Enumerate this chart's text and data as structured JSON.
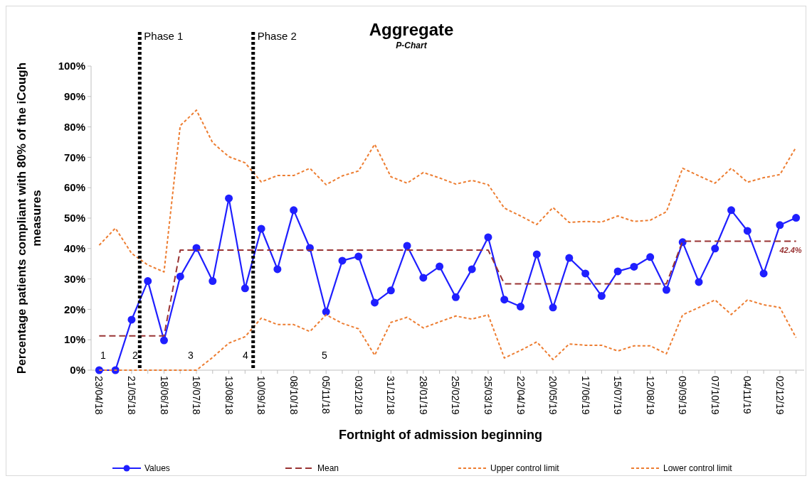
{
  "chart_data": {
    "type": "line",
    "title": "Aggregate",
    "subtitle": "P-Chart",
    "xlabel": "Fortnight of admission beginning",
    "ylabel": "Percentage patients compliant with 80% of the iCough measures",
    "x": [
      "2018-04-23",
      "2018-05-07",
      "2018-05-21",
      "2018-06-04",
      "2018-06-18",
      "2018-07-02",
      "2018-07-16",
      "2018-07-30",
      "2018-08-13",
      "2018-08-27",
      "2018-09-10",
      "2018-09-24",
      "2018-10-08",
      "2018-10-22",
      "2018-11-05",
      "2018-11-19",
      "2018-12-03",
      "2018-12-17",
      "2018-12-31",
      "2019-01-14",
      "2019-01-28",
      "2019-02-11",
      "2019-02-25",
      "2019-03-11",
      "2019-03-25",
      "2019-04-08",
      "2019-04-22",
      "2019-05-06",
      "2019-05-20",
      "2019-06-03",
      "2019-06-17",
      "2019-07-01",
      "2019-07-15",
      "2019-07-29",
      "2019-08-12",
      "2019-08-26",
      "2019-09-09",
      "2019-09-23",
      "2019-10-07",
      "2019-10-21",
      "2019-11-04",
      "2019-11-18",
      "2019-12-02",
      "2019-12-16"
    ],
    "series": [
      {
        "name": "Values",
        "color": "#1f1fff",
        "marker": "circle",
        "line_style": "solid",
        "values": [
          0,
          0,
          16.6,
          29.3,
          9.8,
          30.8,
          40.2,
          29.3,
          56.5,
          26.9,
          46.5,
          33.2,
          52.6,
          40.2,
          19.2,
          36.0,
          37.4,
          22.2,
          26.2,
          40.9,
          30.4,
          34.1,
          24.0,
          33.2,
          43.7,
          23.2,
          20.9,
          38.1,
          20.6,
          36.9,
          31.8,
          24.4,
          32.5,
          34.0,
          37.2,
          26.4,
          42.1,
          29.0,
          40.0,
          52.6,
          45.8,
          31.8,
          47.7,
          50.1
        ]
      },
      {
        "name": "Mean",
        "color": "#993333",
        "marker": "none",
        "line_style": "dashed",
        "values": [
          11.3,
          11.3,
          11.3,
          11.3,
          11.3,
          39.5,
          39.5,
          39.5,
          39.5,
          39.5,
          39.5,
          39.5,
          39.5,
          39.5,
          39.5,
          39.5,
          39.5,
          39.5,
          39.5,
          39.5,
          39.5,
          39.5,
          39.5,
          39.5,
          39.5,
          28.4,
          28.4,
          28.4,
          28.4,
          28.4,
          28.4,
          28.4,
          28.4,
          28.4,
          28.4,
          28.4,
          42.4,
          42.4,
          42.4,
          42.4,
          42.4,
          42.4,
          42.4,
          42.4
        ],
        "value_labels": [
          null,
          null,
          null,
          null,
          null,
          null,
          null,
          null,
          null,
          null,
          null,
          null,
          null,
          null,
          null,
          null,
          null,
          null,
          null,
          null,
          null,
          null,
          null,
          null,
          null,
          null,
          null,
          null,
          null,
          null,
          null,
          null,
          null,
          null,
          null,
          null,
          null,
          null,
          null,
          null,
          null,
          null,
          null,
          "42.4%"
        ]
      },
      {
        "name": "Upper control limit",
        "color": "#ed7d31",
        "marker": "none",
        "line_style": "dotted",
        "values": [
          41.1,
          46.7,
          38.4,
          34.6,
          32.3,
          80.4,
          85.5,
          74.8,
          70.2,
          68.2,
          61.9,
          64.0,
          64.0,
          66.4,
          61.0,
          63.9,
          65.5,
          74.3,
          63.6,
          61.5,
          65.0,
          63.2,
          61.2,
          62.4,
          61.0,
          53.3,
          50.7,
          47.9,
          53.5,
          48.6,
          48.9,
          48.7,
          50.7,
          48.9,
          49.3,
          52.1,
          66.4,
          63.9,
          61.5,
          66.4,
          61.8,
          63.3,
          64.3,
          73.3
        ]
      },
      {
        "name": "Lower control limit",
        "color": "#ed7d31",
        "marker": "none",
        "line_style": "dotted",
        "values": [
          0,
          0,
          0,
          0,
          0,
          0,
          0,
          4.2,
          8.9,
          11.0,
          17.1,
          15.0,
          15.0,
          12.7,
          18.2,
          15.4,
          13.6,
          4.9,
          15.7,
          17.4,
          13.9,
          15.9,
          17.8,
          16.8,
          18.2,
          4.0,
          6.5,
          9.3,
          3.5,
          8.6,
          8.2,
          8.2,
          6.3,
          8.0,
          8.0,
          5.4,
          18.2,
          20.6,
          23.1,
          18.3,
          23.1,
          21.5,
          20.6,
          10.7
        ]
      }
    ],
    "xlim": [
      "2018-04-16",
      "2019-12-23"
    ],
    "xticks": [
      {
        "value": "2018-04-23",
        "label": "23/04/18"
      },
      {
        "value": "2018-05-21",
        "label": "21/05/18"
      },
      {
        "value": "2018-06-18",
        "label": "18/06/18"
      },
      {
        "value": "2018-07-16",
        "label": "16/07/18"
      },
      {
        "value": "2018-08-13",
        "label": "13/08/18"
      },
      {
        "value": "2018-09-10",
        "label": "10/09/18"
      },
      {
        "value": "2018-10-08",
        "label": "08/10/18"
      },
      {
        "value": "2018-11-05",
        "label": "05/11/18"
      },
      {
        "value": "2018-12-03",
        "label": "03/12/18"
      },
      {
        "value": "2018-12-31",
        "label": "31/12/18"
      },
      {
        "value": "2019-01-28",
        "label": "28/01/19"
      },
      {
        "value": "2019-02-25",
        "label": "25/02/19"
      },
      {
        "value": "2019-03-25",
        "label": "25/03/19"
      },
      {
        "value": "2019-04-22",
        "label": "22/04/19"
      },
      {
        "value": "2019-05-20",
        "label": "20/05/19"
      },
      {
        "value": "2019-06-17",
        "label": "17/06/19"
      },
      {
        "value": "2019-07-15",
        "label": "15/07/19"
      },
      {
        "value": "2019-08-12",
        "label": "12/08/19"
      },
      {
        "value": "2019-09-09",
        "label": "09/09/19"
      },
      {
        "value": "2019-10-07",
        "label": "07/10/19"
      },
      {
        "value": "2019-11-04",
        "label": "04/11/19"
      },
      {
        "value": "2019-12-02",
        "label": "02/12/19"
      }
    ],
    "ylim": [
      0,
      100
    ],
    "yticks": [
      {
        "value": 0,
        "label": "0%"
      },
      {
        "value": 10,
        "label": "10%"
      },
      {
        "value": 20,
        "label": "20%"
      },
      {
        "value": 30,
        "label": "30%"
      },
      {
        "value": 40,
        "label": "40%"
      },
      {
        "value": 50,
        "label": "50%"
      },
      {
        "value": 60,
        "label": "60%"
      },
      {
        "value": 70,
        "label": "70%"
      },
      {
        "value": 80,
        "label": "80%"
      },
      {
        "value": 90,
        "label": "90%"
      },
      {
        "value": 100,
        "label": "100%"
      }
    ],
    "ref_lines": [
      {
        "axis": "x",
        "value": "2018-05-28",
        "label": "Phase 1",
        "color": "#000000",
        "line_style": "dotted"
      },
      {
        "axis": "x",
        "value": "2018-09-03",
        "label": "Phase 2",
        "color": "#000000",
        "line_style": "dotted"
      }
    ],
    "annotations": [
      "1",
      "2",
      "3",
      "4",
      "5"
    ],
    "grid": false,
    "legend": "bottom"
  }
}
